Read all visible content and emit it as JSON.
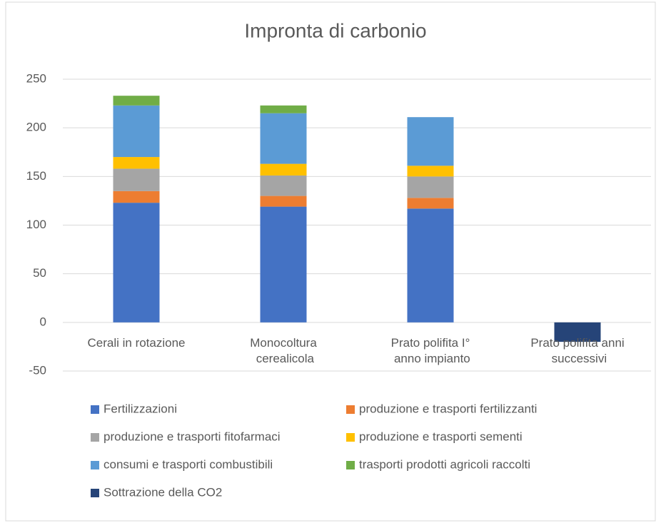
{
  "chart_data": {
    "type": "stacked-bar",
    "title": "Impronta di carbonio",
    "categories": [
      "Cerali in rotazione",
      "Monocoltura cerealicola",
      "Prato polifita I° anno impianto",
      "Prato polifita anni successivi"
    ],
    "series": [
      {
        "name": "Fertilizzazioni",
        "color": "#4472c4",
        "values": [
          123,
          119,
          117,
          0
        ]
      },
      {
        "name": "produzione e trasporti fertilizzanti",
        "color": "#ed7d31",
        "values": [
          12,
          11,
          11,
          0
        ]
      },
      {
        "name": "produzione e trasporti fitofarmaci",
        "color": "#a5a5a5",
        "values": [
          23,
          21,
          22,
          0
        ]
      },
      {
        "name": "produzione e trasporti sementi",
        "color": "#ffc000",
        "values": [
          12,
          12,
          11,
          0
        ]
      },
      {
        "name": "consumi e trasporti combustibili",
        "color": "#5b9bd5",
        "values": [
          53,
          52,
          50,
          0
        ]
      },
      {
        "name": "trasporti prodotti agricoli raccolti",
        "color": "#70ad47",
        "values": [
          10,
          8,
          0,
          0
        ]
      },
      {
        "name": "Sottrazione della CO2",
        "color": "#264478",
        "values": [
          0,
          0,
          0,
          -20
        ]
      }
    ],
    "ylim": [
      -50,
      250
    ],
    "yticks": [
      -50,
      0,
      50,
      100,
      150,
      200,
      250
    ],
    "grid": true,
    "legend": "bottom"
  }
}
